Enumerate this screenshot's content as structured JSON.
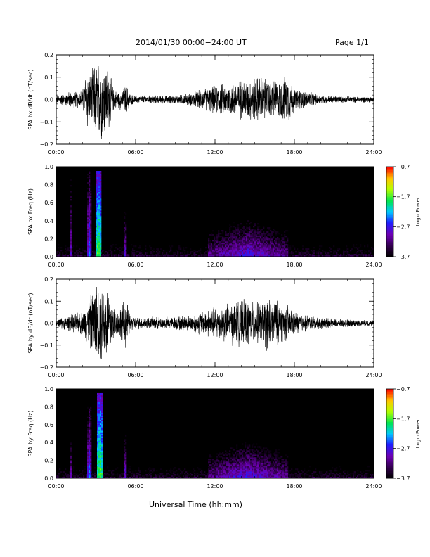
{
  "header": {
    "title": "2014/01/30  00:00−24:00 UT",
    "page_label": "Page 1/1"
  },
  "footer": {
    "xlabel": "Universal Time (hh:mm)"
  },
  "chart_data": [
    {
      "type": "line",
      "ylabel": "SPA bx dB/dt (nT/sec)",
      "ylim": [
        -0.2,
        0.2
      ],
      "yticks": [
        "−0.2",
        "−0.1",
        "0.0",
        "0.1",
        "0.2"
      ],
      "ytick_values": [
        -0.2,
        -0.1,
        0.0,
        0.1,
        0.2
      ],
      "xlim": [
        0,
        24
      ],
      "xticks": [
        "00:00",
        "06:00",
        "12:00",
        "18:00",
        "24:00"
      ],
      "xtick_values": [
        0,
        6,
        12,
        18,
        24
      ],
      "series": [
        {
          "x": [
            0,
            0.5,
            1,
            1.5,
            2,
            2.3,
            2.6,
            3,
            3.3,
            3.6,
            4,
            4.3,
            4.6,
            5,
            5.3,
            5.6,
            6,
            7,
            8,
            9,
            10,
            10.5,
            11,
            11.5,
            12,
            12.5,
            13,
            13.5,
            14,
            14.5,
            15,
            15.5,
            16,
            16.5,
            17,
            17.5,
            18,
            18.5,
            19,
            20,
            21,
            22,
            23,
            24
          ],
          "amplitude": [
            0.02,
            0.03,
            0.04,
            0.04,
            0.05,
            0.17,
            0.12,
            0.2,
            0.2,
            0.2,
            0.15,
            0.06,
            0.04,
            0.06,
            0.08,
            0.03,
            0.02,
            0.02,
            0.02,
            0.02,
            0.03,
            0.04,
            0.05,
            0.06,
            0.07,
            0.08,
            0.08,
            0.09,
            0.1,
            0.1,
            0.11,
            0.12,
            0.09,
            0.1,
            0.1,
            0.12,
            0.06,
            0.05,
            0.04,
            0.02,
            0.02,
            0.015,
            0.015,
            0.015
          ]
        }
      ]
    },
    {
      "type": "heatmap",
      "ylabel": "SPA bx Freq (Hz)",
      "ylim": [
        0,
        1.0
      ],
      "yticks": [
        "0.0",
        "0.2",
        "0.4",
        "0.6",
        "0.8",
        "1.0"
      ],
      "ytick_values": [
        0,
        0.2,
        0.4,
        0.6,
        0.8,
        1.0
      ],
      "xlim": [
        0,
        24
      ],
      "xticks": [
        "00:00",
        "06:00",
        "12:00",
        "18:00",
        "24:00"
      ],
      "xtick_values": [
        0,
        6,
        12,
        18,
        24
      ],
      "colorbar": {
        "label": "Log₁₀ Power",
        "ticks": [
          "−0.7",
          "−1.7",
          "−2.7",
          "−3.7"
        ],
        "tick_values": [
          -0.7,
          -1.7,
          -2.7,
          -3.7
        ],
        "range": [
          -3.7,
          -0.7
        ]
      },
      "features": [
        {
          "t": 1.1,
          "width": 0.15,
          "fmax": 0.95,
          "level": -2.8
        },
        {
          "t": 2.5,
          "width": 0.3,
          "fmax": 0.95,
          "level": -2.4
        },
        {
          "t": 3.2,
          "width": 0.5,
          "fmax": 0.95,
          "level": -1.6
        },
        {
          "t": 5.2,
          "width": 0.25,
          "fmax": 0.5,
          "level": -2.6
        },
        {
          "t": 14.5,
          "width": 6.0,
          "fmax": 0.4,
          "level": -2.7
        }
      ]
    },
    {
      "type": "line",
      "ylabel": "SPA by dB/dt (nT/sec)",
      "ylim": [
        -0.2,
        0.2
      ],
      "yticks": [
        "−0.2",
        "−0.1",
        "0.0",
        "0.1",
        "0.2"
      ],
      "ytick_values": [
        -0.2,
        -0.1,
        0.0,
        0.1,
        0.2
      ],
      "xlim": [
        0,
        24
      ],
      "xticks": [
        "00:00",
        "06:00",
        "12:00",
        "18:00",
        "24:00"
      ],
      "xtick_values": [
        0,
        6,
        12,
        18,
        24
      ],
      "series": [
        {
          "x": [
            0,
            0.5,
            1,
            1.5,
            2,
            2.3,
            2.6,
            3,
            3.3,
            3.6,
            4,
            4.3,
            4.6,
            5,
            5.3,
            5.6,
            6,
            7,
            8,
            9,
            10,
            10.5,
            11,
            11.5,
            12,
            12.5,
            13,
            13.5,
            14,
            14.5,
            15,
            15.5,
            16,
            16.5,
            17,
            17.5,
            18,
            18.5,
            19,
            20,
            21,
            22,
            23,
            24
          ],
          "amplitude": [
            0.02,
            0.03,
            0.04,
            0.05,
            0.06,
            0.1,
            0.14,
            0.2,
            0.2,
            0.2,
            0.2,
            0.1,
            0.06,
            0.1,
            0.13,
            0.04,
            0.03,
            0.03,
            0.03,
            0.035,
            0.04,
            0.05,
            0.06,
            0.07,
            0.08,
            0.09,
            0.1,
            0.11,
            0.11,
            0.12,
            0.1,
            0.11,
            0.14,
            0.12,
            0.1,
            0.09,
            0.06,
            0.05,
            0.04,
            0.03,
            0.02,
            0.02,
            0.015,
            0.015
          ]
        }
      ]
    },
    {
      "type": "heatmap",
      "ylabel": "SPA by Freq (Hz)",
      "ylim": [
        0,
        1.0
      ],
      "yticks": [
        "0.0",
        "0.2",
        "0.4",
        "0.6",
        "0.8",
        "1.0"
      ],
      "ytick_values": [
        0,
        0.2,
        0.4,
        0.6,
        0.8,
        1.0
      ],
      "xlim": [
        0,
        24
      ],
      "xticks": [
        "00:00",
        "06:00",
        "12:00",
        "18:00",
        "24:00"
      ],
      "xtick_values": [
        0,
        6,
        12,
        18,
        24
      ],
      "colorbar": {
        "label": "Log₁₀ Power",
        "ticks": [
          "−0.7",
          "−1.7",
          "−2.7",
          "−3.7"
        ],
        "tick_values": [
          -0.7,
          -1.7,
          -2.7,
          -3.7
        ],
        "range": [
          -3.7,
          -0.7
        ]
      },
      "features": [
        {
          "t": 1.1,
          "width": 0.15,
          "fmax": 0.6,
          "level": -2.9
        },
        {
          "t": 2.5,
          "width": 0.3,
          "fmax": 0.8,
          "level": -2.4
        },
        {
          "t": 3.3,
          "width": 0.5,
          "fmax": 0.95,
          "level": -1.6
        },
        {
          "t": 5.2,
          "width": 0.25,
          "fmax": 0.5,
          "level": -2.6
        },
        {
          "t": 14.5,
          "width": 6.0,
          "fmax": 0.4,
          "level": -2.7
        }
      ]
    }
  ]
}
